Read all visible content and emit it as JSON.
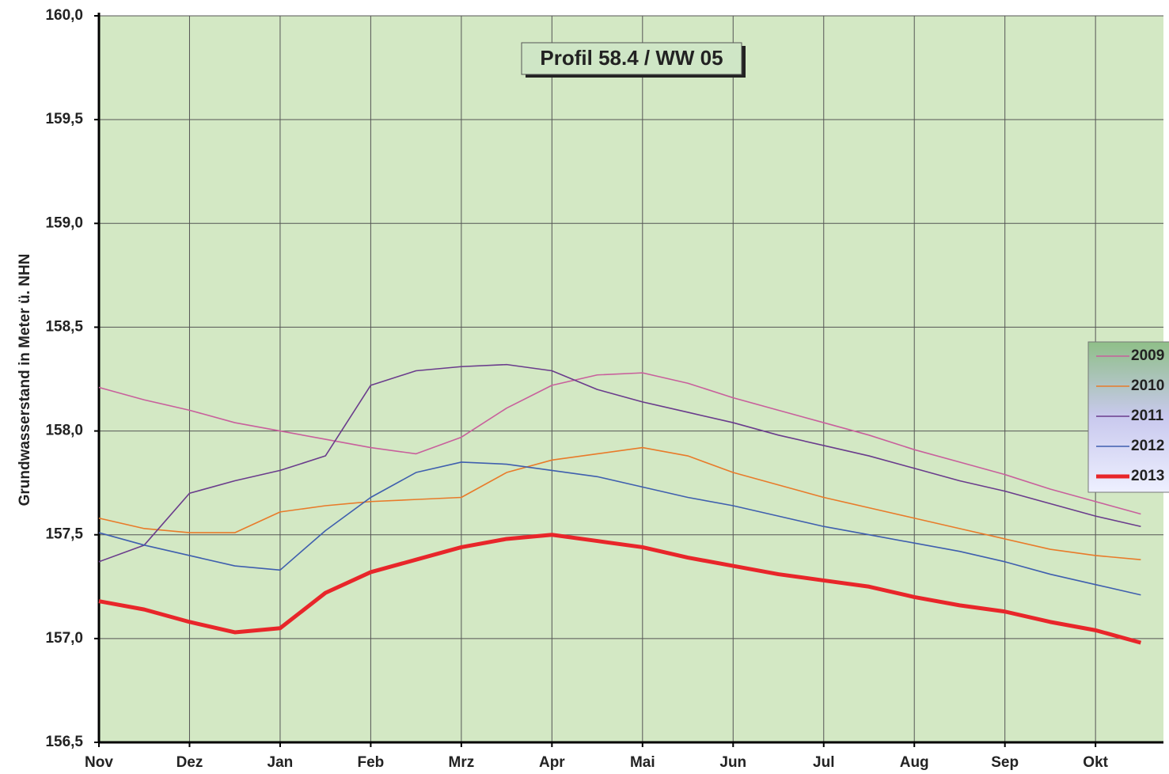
{
  "chart_data": {
    "type": "line",
    "title": "Profil 58.4 / WW 05",
    "y_label": "Grundwasserstand in Meter ü. NHN",
    "categories": [
      "Nov",
      null,
      "Dez",
      null,
      "Jan",
      null,
      "Feb",
      null,
      "Mrz",
      null,
      "Apr",
      null,
      "Mai",
      null,
      "Jun",
      null,
      "Jul",
      null,
      "Aug",
      null,
      "Sep",
      null,
      "Okt",
      null
    ],
    "series": [
      {
        "name": "2009",
        "color": "#c8609c",
        "values": [
          158.21,
          158.15,
          158.1,
          158.04,
          158.0,
          157.96,
          157.92,
          157.89,
          157.97,
          158.11,
          158.22,
          158.27,
          158.28,
          158.23,
          158.16,
          158.1,
          158.04,
          157.98,
          157.91,
          157.85,
          157.79,
          157.72,
          157.66,
          157.6
        ]
      },
      {
        "name": "2010",
        "color": "#e87b2a",
        "values": [
          157.58,
          157.53,
          157.51,
          157.51,
          157.61,
          157.64,
          157.66,
          157.67,
          157.68,
          157.8,
          157.86,
          157.89,
          157.92,
          157.88,
          157.8,
          157.74,
          157.68,
          157.63,
          157.58,
          157.53,
          157.48,
          157.43,
          157.4,
          157.38
        ]
      },
      {
        "name": "2011",
        "color": "#6a3c8c",
        "values": [
          157.37,
          157.45,
          157.7,
          157.76,
          157.81,
          157.88,
          158.22,
          158.29,
          158.31,
          158.32,
          158.29,
          158.2,
          158.14,
          158.09,
          158.04,
          157.98,
          157.93,
          157.88,
          157.82,
          157.76,
          157.71,
          157.65,
          157.59,
          157.54
        ]
      },
      {
        "name": "2012",
        "color": "#3f5fae",
        "values": [
          157.51,
          157.45,
          157.4,
          157.35,
          157.33,
          157.52,
          157.68,
          157.8,
          157.85,
          157.84,
          157.81,
          157.78,
          157.73,
          157.68,
          157.64,
          157.59,
          157.54,
          157.5,
          157.46,
          157.42,
          157.37,
          157.31,
          157.26,
          157.21
        ]
      },
      {
        "name": "2013",
        "color": "#e8262a",
        "values": [
          157.18,
          157.14,
          157.08,
          157.03,
          157.05,
          157.22,
          157.32,
          157.38,
          157.44,
          157.48,
          157.5,
          157.47,
          157.44,
          157.39,
          157.35,
          157.31,
          157.28,
          157.25,
          157.2,
          157.16,
          157.13,
          157.08,
          157.04,
          156.98
        ]
      }
    ],
    "ylim": [
      156.5,
      160.0
    ],
    "yticks": [
      {
        "value": 156.5,
        "label": "156,5"
      },
      {
        "value": 157.0,
        "label": "157,0"
      },
      {
        "value": 157.5,
        "label": "157,5"
      },
      {
        "value": 158.0,
        "label": "158,0"
      },
      {
        "value": 158.5,
        "label": "158,5"
      },
      {
        "value": 159.0,
        "label": "159,0"
      },
      {
        "value": 159.5,
        "label": "159,5"
      },
      {
        "value": 160.0,
        "label": "160,0"
      }
    ],
    "grid": true,
    "legend": "right"
  }
}
